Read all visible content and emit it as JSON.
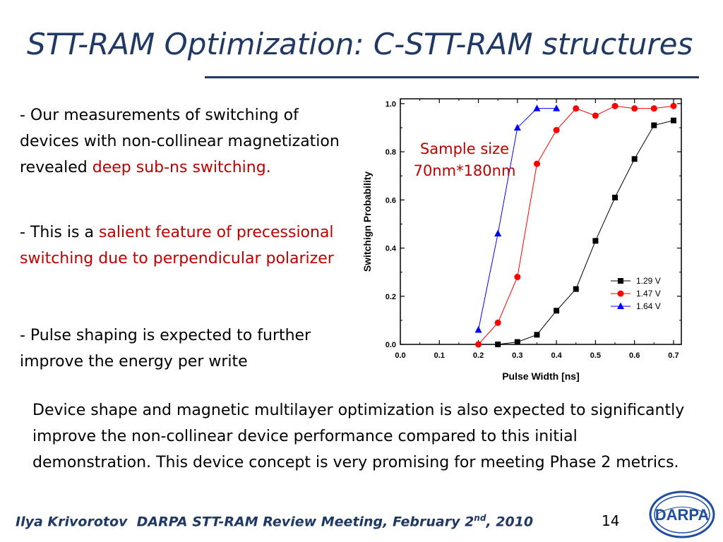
{
  "slide": {
    "title": "STT-RAM Optimization: C-STT-RAM structures",
    "bullets": [
      {
        "text": "- Our measurements of switching of devices with non-collinear magnetization revealed ",
        "highlight": "deep sub-ns switching."
      },
      {
        "text": "- This is a ",
        "highlight": "salient feature of precessional switching due to perpendicular polarizer"
      },
      {
        "text": "- Pulse shaping is expected to further improve the energy per write"
      }
    ],
    "sample_note_line1": "Sample size",
    "sample_note_line2": "70nm*180nm",
    "summary": "Device shape and magnetic multilayer optimization is also expected to significantly improve the non-collinear device performance compared to this initial demonstration.  This device concept is very promising for meeting Phase 2 metrics.",
    "footer": {
      "author": "Ilya Krivorotov",
      "meeting_pre": "DARPA STT-RAM Review Meeting, February 2",
      "meeting_sup": "nd",
      "meeting_post": ", 2010"
    },
    "page_number": "14",
    "logo_text": "DARPA",
    "colors": {
      "title": "#1F3864",
      "highlight": "#C00000",
      "logo": "#1F4E9E"
    }
  },
  "chart_data": {
    "type": "line",
    "title": "",
    "xlabel": "Pulse Width [ns]",
    "ylabel": "Switchign Probability",
    "xlim": [
      0.0,
      0.72
    ],
    "ylim": [
      0.0,
      1.02
    ],
    "xticks": [
      0.0,
      0.1,
      0.2,
      0.3,
      0.4,
      0.5,
      0.6,
      0.7
    ],
    "yticks": [
      0.0,
      0.2,
      0.4,
      0.6,
      0.8,
      1.0
    ],
    "xtick_labels": [
      "0.0",
      "0.1",
      "0.2",
      "0.3",
      "0.4",
      "0.5",
      "0.6",
      "0.7"
    ],
    "ytick_labels": [
      "0.0",
      "0.2",
      "0.4",
      "0.6",
      "0.8",
      "1.0"
    ],
    "grid": false,
    "legend_position": "bottom-right",
    "series": [
      {
        "name": "1.29 V",
        "color": "#000000",
        "marker": "square",
        "x": [
          0.25,
          0.3,
          0.35,
          0.4,
          0.45,
          0.5,
          0.55,
          0.6,
          0.65,
          0.7
        ],
        "y": [
          0.0,
          0.01,
          0.04,
          0.14,
          0.23,
          0.43,
          0.61,
          0.77,
          0.91,
          0.93
        ]
      },
      {
        "name": "1.47 V",
        "color": "#FF0000",
        "marker": "circle",
        "x": [
          0.2,
          0.25,
          0.3,
          0.35,
          0.4,
          0.45,
          0.5,
          0.55,
          0.6,
          0.65,
          0.7
        ],
        "y": [
          0.0,
          0.09,
          0.28,
          0.75,
          0.89,
          0.98,
          0.95,
          0.99,
          0.98,
          0.98,
          0.99
        ]
      },
      {
        "name": "1.64 V",
        "color": "#0000FF",
        "marker": "triangle",
        "x": [
          0.2,
          0.25,
          0.3,
          0.35,
          0.4
        ],
        "y": [
          0.06,
          0.46,
          0.9,
          0.98,
          0.98
        ]
      }
    ]
  }
}
